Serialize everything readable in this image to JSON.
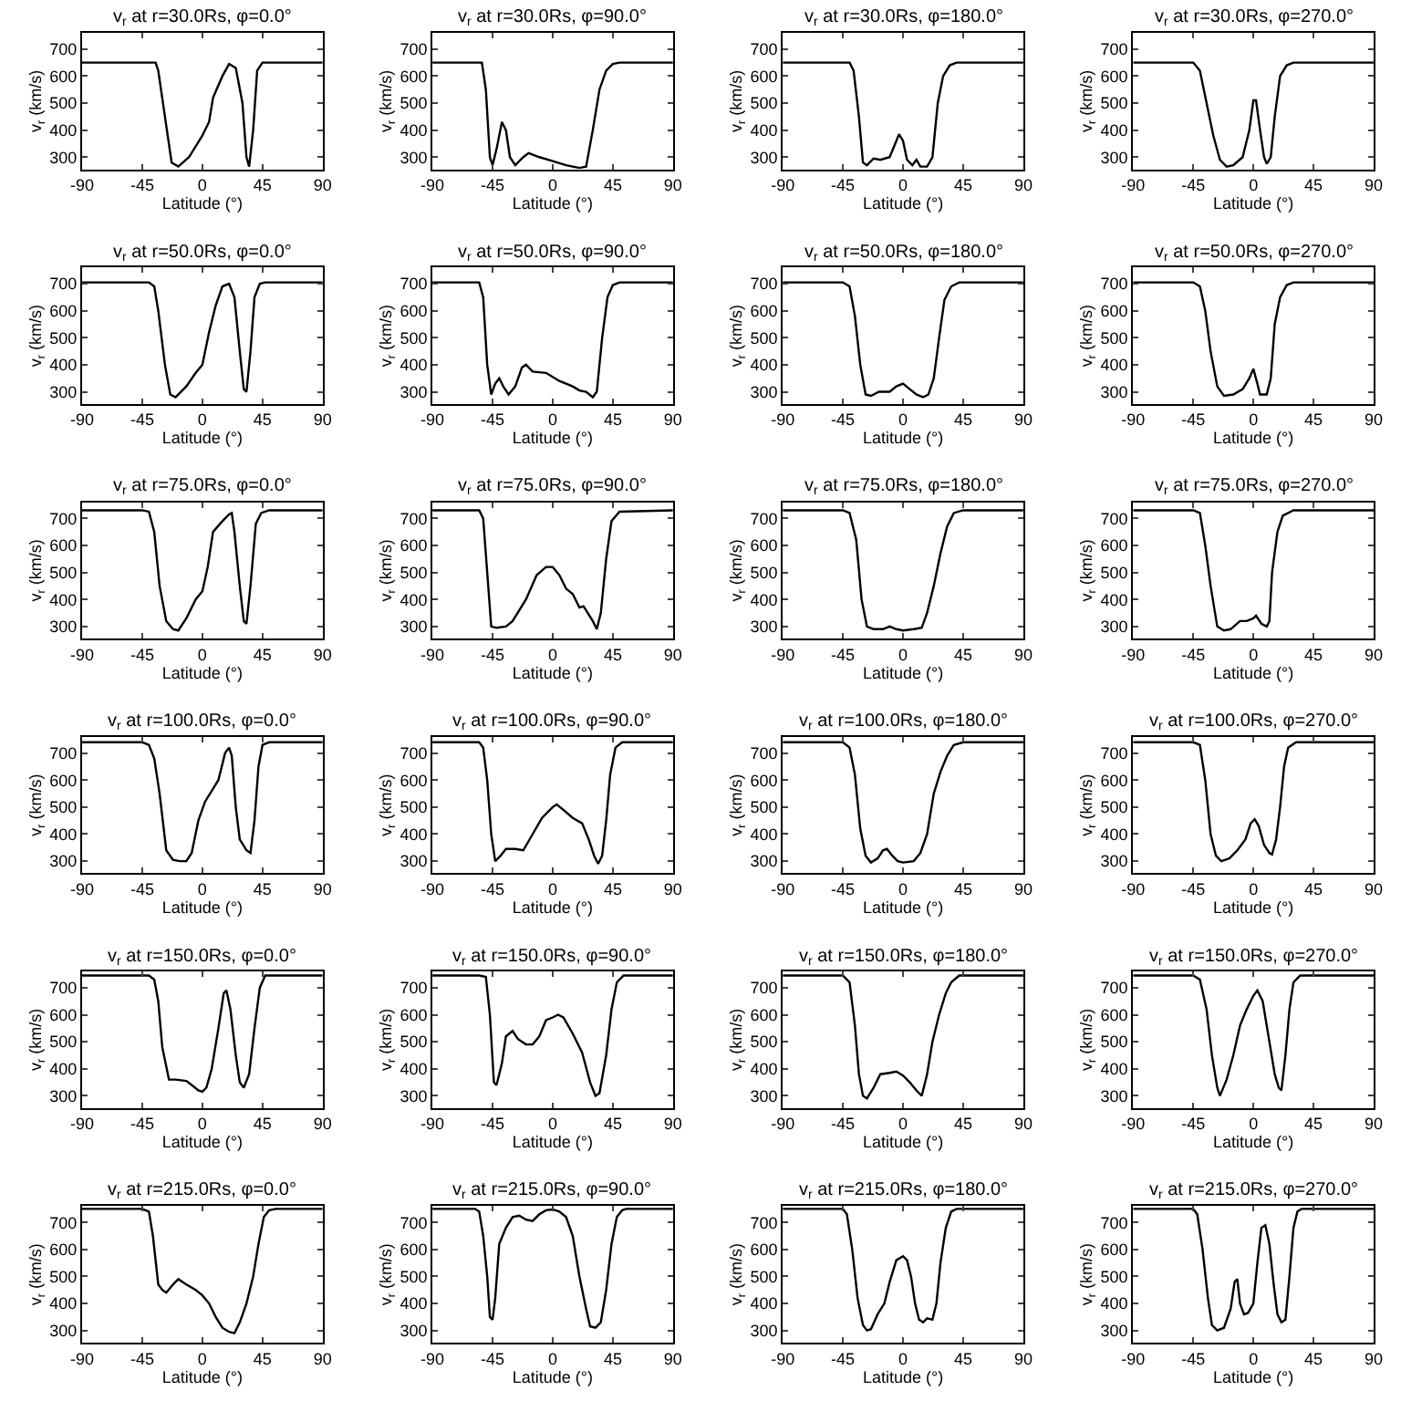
{
  "chart_data": [
    {
      "type": "line",
      "title": "v$_{r}$ at r=30.0Rs, φ=0.0°",
      "xlabel": "Latitude (°)",
      "ylabel": "v$_{r}$ (km/s)",
      "color": "#000000",
      "xlim": [
        -90,
        90
      ],
      "xticks": [
        -90,
        -45,
        0,
        45,
        90
      ],
      "ylim": [
        255,
        760
      ],
      "yticks": [
        300,
        400,
        500,
        600,
        700
      ],
      "x": [
        -90,
        -35,
        -33,
        -28,
        -23,
        -18,
        -10,
        0,
        5,
        8,
        15,
        20,
        25,
        30,
        33,
        35,
        38,
        41,
        45,
        90
      ],
      "values": [
        650,
        650,
        620,
        450,
        280,
        265,
        300,
        380,
        430,
        520,
        600,
        645,
        630,
        500,
        300,
        265,
        400,
        620,
        650,
        650
      ]
    },
    {
      "type": "line",
      "title": "v$_{r}$ at r=30.0Rs, φ=90.0°",
      "xlabel": "Latitude (°)",
      "ylabel": "v$_{r}$ (km/s)",
      "color": "#000000",
      "xlim": [
        -90,
        90
      ],
      "xticks": [
        -90,
        -45,
        0,
        45,
        90
      ],
      "ylim": [
        255,
        760
      ],
      "yticks": [
        300,
        400,
        500,
        600,
        700
      ],
      "x": [
        -90,
        -53,
        -50,
        -47,
        -45,
        -42,
        -38,
        -35,
        -32,
        -28,
        -22,
        -18,
        -10,
        0,
        10,
        20,
        25,
        30,
        35,
        40,
        45,
        50,
        90
      ],
      "values": [
        650,
        650,
        550,
        300,
        270,
        330,
        430,
        400,
        300,
        270,
        300,
        315,
        300,
        285,
        270,
        260,
        265,
        400,
        550,
        620,
        645,
        650,
        650
      ]
    },
    {
      "type": "line",
      "title": "v$_{r}$ at r=30.0Rs, φ=180.0°",
      "xlabel": "Latitude (°)",
      "ylabel": "v$_{r}$ (km/s)",
      "color": "#000000",
      "xlim": [
        -90,
        90
      ],
      "xticks": [
        -90,
        -45,
        0,
        45,
        90
      ],
      "ylim": [
        255,
        760
      ],
      "yticks": [
        300,
        400,
        500,
        600,
        700
      ],
      "x": [
        -90,
        -40,
        -37,
        -33,
        -30,
        -27,
        -22,
        -17,
        -10,
        -5,
        -3,
        0,
        3,
        7,
        10,
        13,
        18,
        22,
        26,
        30,
        35,
        40,
        90
      ],
      "values": [
        650,
        650,
        620,
        450,
        280,
        270,
        295,
        290,
        300,
        360,
        385,
        360,
        290,
        270,
        290,
        265,
        265,
        300,
        500,
        600,
        640,
        650,
        650
      ]
    },
    {
      "type": "line",
      "title": "v$_{r}$ at r=30.0Rs, φ=270.0°",
      "xlabel": "Latitude (°)",
      "ylabel": "v$_{r}$ (km/s)",
      "color": "#000000",
      "xlim": [
        -90,
        90
      ],
      "xticks": [
        -90,
        -45,
        0,
        45,
        90
      ],
      "ylim": [
        255,
        760
      ],
      "yticks": [
        300,
        400,
        500,
        600,
        700
      ],
      "x": [
        -90,
        -45,
        -40,
        -35,
        -30,
        -25,
        -20,
        -15,
        -8,
        -3,
        0,
        2,
        5,
        8,
        10,
        13,
        16,
        20,
        25,
        30,
        90
      ],
      "values": [
        650,
        650,
        620,
        500,
        380,
        290,
        265,
        270,
        300,
        400,
        510,
        510,
        400,
        300,
        275,
        300,
        450,
        600,
        640,
        650,
        650
      ]
    },
    {
      "type": "line",
      "title": "v$_{r}$ at r=50.0Rs, φ=0.0°",
      "xlabel": "Latitude (°)",
      "ylabel": "v$_{r}$ (km/s)",
      "color": "#000000",
      "xlim": [
        -90,
        90
      ],
      "xticks": [
        -90,
        -45,
        0,
        45,
        90
      ],
      "ylim": [
        255,
        760
      ],
      "yticks": [
        300,
        400,
        500,
        600,
        700
      ],
      "x": [
        -90,
        -40,
        -36,
        -33,
        -28,
        -24,
        -20,
        -12,
        -5,
        0,
        5,
        10,
        15,
        20,
        24,
        28,
        31,
        33,
        36,
        39,
        43,
        47,
        90
      ],
      "values": [
        705,
        705,
        690,
        600,
        400,
        290,
        280,
        320,
        370,
        400,
        520,
        620,
        690,
        700,
        650,
        450,
        310,
        300,
        450,
        650,
        700,
        705,
        705
      ]
    },
    {
      "type": "line",
      "title": "v$_{r}$ at r=50.0Rs, φ=90.0°",
      "xlabel": "Latitude (°)",
      "ylabel": "v$_{r}$ (km/s)",
      "color": "#000000",
      "xlim": [
        -90,
        90
      ],
      "xticks": [
        -90,
        -45,
        0,
        45,
        90
      ],
      "ylim": [
        255,
        760
      ],
      "yticks": [
        300,
        400,
        500,
        600,
        700
      ],
      "x": [
        -90,
        -55,
        -52,
        -49,
        -46,
        -43,
        -40,
        -37,
        -33,
        -28,
        -23,
        -20,
        -15,
        -5,
        5,
        15,
        20,
        25,
        30,
        33,
        37,
        41,
        45,
        50,
        90
      ],
      "values": [
        705,
        705,
        650,
        400,
        290,
        330,
        350,
        320,
        290,
        320,
        390,
        400,
        375,
        370,
        340,
        320,
        305,
        300,
        280,
        300,
        500,
        650,
        695,
        705,
        705
      ]
    },
    {
      "type": "line",
      "title": "v$_{r}$ at r=50.0Rs, φ=180.0°",
      "xlabel": "Latitude (°)",
      "ylabel": "v$_{r}$ (km/s)",
      "color": "#000000",
      "xlim": [
        -90,
        90
      ],
      "xticks": [
        -90,
        -45,
        0,
        45,
        90
      ],
      "ylim": [
        255,
        760
      ],
      "yticks": [
        300,
        400,
        500,
        600,
        700
      ],
      "x": [
        -90,
        -45,
        -40,
        -36,
        -32,
        -28,
        -24,
        -18,
        -10,
        -5,
        0,
        5,
        10,
        15,
        19,
        23,
        27,
        31,
        36,
        42,
        90
      ],
      "values": [
        705,
        705,
        690,
        580,
        400,
        290,
        285,
        300,
        300,
        320,
        330,
        310,
        290,
        280,
        290,
        350,
        500,
        640,
        690,
        705,
        705
      ]
    },
    {
      "type": "line",
      "title": "v$_{r}$ at r=50.0Rs, φ=270.0°",
      "xlabel": "Latitude (°)",
      "ylabel": "v$_{r}$ (km/s)",
      "color": "#000000",
      "xlim": [
        -90,
        90
      ],
      "xticks": [
        -90,
        -45,
        0,
        45,
        90
      ],
      "ylim": [
        255,
        760
      ],
      "yticks": [
        300,
        400,
        500,
        600,
        700
      ],
      "x": [
        -90,
        -45,
        -40,
        -36,
        -32,
        -27,
        -22,
        -15,
        -8,
        -3,
        0,
        3,
        5,
        10,
        13,
        16,
        20,
        25,
        30,
        90
      ],
      "values": [
        705,
        705,
        690,
        600,
        450,
        320,
        285,
        290,
        310,
        350,
        385,
        330,
        290,
        290,
        350,
        550,
        650,
        695,
        705,
        705
      ]
    },
    {
      "type": "line",
      "title": "v$_{r}$ at r=75.0Rs, φ=0.0°",
      "xlabel": "Latitude (°)",
      "ylabel": "v$_{r}$ (km/s)",
      "color": "#000000",
      "xlim": [
        -90,
        90
      ],
      "xticks": [
        -90,
        -45,
        0,
        45,
        90
      ],
      "ylim": [
        255,
        760
      ],
      "yticks": [
        300,
        400,
        500,
        600,
        700
      ],
      "x": [
        -90,
        -45,
        -40,
        -36,
        -32,
        -27,
        -22,
        -18,
        -12,
        -5,
        0,
        4,
        8,
        15,
        20,
        22,
        24,
        28,
        31,
        33,
        36,
        40,
        44,
        50,
        90
      ],
      "values": [
        730,
        730,
        725,
        650,
        450,
        320,
        290,
        285,
        330,
        400,
        430,
        520,
        650,
        690,
        715,
        720,
        650,
        450,
        320,
        310,
        450,
        680,
        720,
        730,
        730
      ]
    },
    {
      "type": "line",
      "title": "v$_{r}$ at r=75.0Rs, φ=90.0°",
      "xlabel": "Latitude (°)",
      "ylabel": "v$_{r}$ (km/s)",
      "color": "#000000",
      "xlim": [
        -90,
        90
      ],
      "xticks": [
        -90,
        -45,
        0,
        45,
        90
      ],
      "ylim": [
        255,
        760
      ],
      "yticks": [
        300,
        400,
        500,
        600,
        700
      ],
      "x": [
        -90,
        -55,
        -52,
        -49,
        -46,
        -42,
        -35,
        -30,
        -20,
        -12,
        -5,
        0,
        5,
        10,
        15,
        20,
        23,
        25,
        30,
        33,
        36,
        40,
        44,
        50,
        90
      ],
      "values": [
        730,
        730,
        700,
        500,
        300,
        295,
        300,
        320,
        400,
        490,
        520,
        520,
        490,
        440,
        420,
        370,
        375,
        360,
        320,
        290,
        350,
        550,
        690,
        725,
        730
      ]
    },
    {
      "type": "line",
      "title": "v$_{r}$ at r=75.0Rs, φ=180.0°",
      "xlabel": "Latitude (°)",
      "ylabel": "v$_{r}$ (km/s)",
      "color": "#000000",
      "xlim": [
        -90,
        90
      ],
      "xticks": [
        -90,
        -45,
        0,
        45,
        90
      ],
      "ylim": [
        255,
        760
      ],
      "yticks": [
        300,
        400,
        500,
        600,
        700
      ],
      "x": [
        -90,
        -45,
        -40,
        -35,
        -31,
        -27,
        -22,
        -15,
        -10,
        -5,
        0,
        8,
        14,
        18,
        23,
        28,
        33,
        38,
        45,
        90
      ],
      "values": [
        730,
        730,
        720,
        620,
        400,
        300,
        290,
        290,
        300,
        290,
        285,
        290,
        295,
        350,
        450,
        570,
        670,
        720,
        730,
        730
      ]
    },
    {
      "type": "line",
      "title": "v$_{r}$ at r=75.0Rs, φ=270.0°",
      "xlabel": "Latitude (°)",
      "ylabel": "v$_{r}$ (km/s)",
      "color": "#000000",
      "xlim": [
        -90,
        90
      ],
      "xticks": [
        -90,
        -45,
        0,
        45,
        90
      ],
      "ylim": [
        255,
        760
      ],
      "yticks": [
        300,
        400,
        500,
        600,
        700
      ],
      "x": [
        -90,
        -45,
        -40,
        -36,
        -32,
        -27,
        -22,
        -17,
        -10,
        -5,
        0,
        2,
        6,
        10,
        12,
        14,
        18,
        22,
        30,
        90
      ],
      "values": [
        730,
        730,
        720,
        600,
        450,
        300,
        285,
        290,
        320,
        320,
        330,
        340,
        310,
        300,
        320,
        500,
        650,
        710,
        730,
        730
      ]
    },
    {
      "type": "line",
      "title": "v$_{r}$ at r=100.0Rs, φ=0.0°",
      "xlabel": "Latitude (°)",
      "ylabel": "v$_{r}$ (km/s)",
      "color": "#000000",
      "xlim": [
        -90,
        90
      ],
      "xticks": [
        -90,
        -45,
        0,
        45,
        90
      ],
      "ylim": [
        255,
        760
      ],
      "yticks": [
        300,
        400,
        500,
        600,
        700
      ],
      "x": [
        -90,
        -45,
        -40,
        -36,
        -32,
        -27,
        -22,
        -17,
        -12,
        -8,
        -3,
        2,
        7,
        12,
        17,
        20,
        22,
        25,
        28,
        33,
        36,
        39,
        42,
        45,
        50,
        90
      ],
      "values": [
        740,
        740,
        730,
        680,
        550,
        340,
        305,
        300,
        300,
        330,
        450,
        520,
        560,
        600,
        700,
        720,
        690,
        500,
        380,
        340,
        330,
        450,
        650,
        730,
        740,
        740
      ]
    },
    {
      "type": "line",
      "title": "v$_{r}$ at r=100.0Rs, φ=90.0°",
      "xlabel": "Latitude (°)",
      "ylabel": "v$_{r}$ (km/s)",
      "color": "#000000",
      "xlim": [
        -90,
        90
      ],
      "xticks": [
        -90,
        -45,
        0,
        45,
        90
      ],
      "ylim": [
        255,
        760
      ],
      "yticks": [
        300,
        400,
        500,
        600,
        700
      ],
      "x": [
        -90,
        -55,
        -52,
        -49,
        -46,
        -43,
        -39,
        -35,
        -28,
        -22,
        -15,
        -8,
        0,
        3,
        8,
        15,
        22,
        27,
        31,
        34,
        37,
        40,
        43,
        47,
        52,
        90
      ],
      "values": [
        740,
        740,
        720,
        600,
        400,
        300,
        320,
        345,
        345,
        340,
        400,
        460,
        500,
        510,
        490,
        460,
        440,
        380,
        320,
        290,
        320,
        450,
        620,
        720,
        740,
        740
      ]
    },
    {
      "type": "line",
      "title": "v$_{r}$ at r=100.0Rs, φ=180.0°",
      "xlabel": "Latitude (°)",
      "ylabel": "v$_{r}$ (km/s)",
      "color": "#000000",
      "xlim": [
        -90,
        90
      ],
      "xticks": [
        -90,
        -45,
        0,
        45,
        90
      ],
      "ylim": [
        255,
        760
      ],
      "yticks": [
        300,
        400,
        500,
        600,
        700
      ],
      "x": [
        -90,
        -45,
        -40,
        -36,
        -32,
        -28,
        -24,
        -19,
        -15,
        -12,
        -8,
        -4,
        0,
        8,
        13,
        18,
        23,
        28,
        33,
        38,
        45,
        90
      ],
      "values": [
        740,
        740,
        720,
        620,
        420,
        320,
        295,
        310,
        340,
        345,
        320,
        300,
        295,
        300,
        330,
        400,
        550,
        630,
        690,
        730,
        740,
        740
      ]
    },
    {
      "type": "line",
      "title": "v$_{r}$ at r=100.0Rs, φ=270.0°",
      "xlabel": "Latitude (°)",
      "ylabel": "v$_{r}$ (km/s)",
      "color": "#000000",
      "xlim": [
        -90,
        90
      ],
      "xticks": [
        -90,
        -45,
        0,
        45,
        90
      ],
      "ylim": [
        255,
        760
      ],
      "yticks": [
        300,
        400,
        500,
        600,
        700
      ],
      "x": [
        -90,
        -45,
        -40,
        -36,
        -32,
        -28,
        -24,
        -18,
        -12,
        -6,
        -2,
        1,
        4,
        8,
        12,
        14,
        17,
        20,
        23,
        26,
        32,
        90
      ],
      "values": [
        740,
        740,
        730,
        600,
        400,
        320,
        300,
        310,
        340,
        380,
        440,
        455,
        430,
        360,
        330,
        325,
        380,
        500,
        650,
        720,
        740,
        740
      ]
    },
    {
      "type": "line",
      "title": "v$_{r}$ at r=150.0Rs, φ=0.0°",
      "xlabel": "Latitude (°)",
      "ylabel": "v$_{r}$ (km/s)",
      "color": "#000000",
      "xlim": [
        -90,
        90
      ],
      "xticks": [
        -90,
        -45,
        0,
        45,
        90
      ],
      "ylim": [
        255,
        760
      ],
      "yticks": [
        300,
        400,
        500,
        600,
        700
      ],
      "x": [
        -90,
        -40,
        -36,
        -33,
        -30,
        -25,
        -20,
        -12,
        -8,
        -3,
        0,
        3,
        7,
        12,
        16,
        18,
        21,
        25,
        28,
        31,
        35,
        39,
        43,
        47,
        90
      ],
      "values": [
        745,
        745,
        730,
        650,
        480,
        360,
        360,
        355,
        340,
        320,
        315,
        330,
        400,
        550,
        680,
        690,
        620,
        450,
        350,
        330,
        380,
        550,
        700,
        745,
        745
      ]
    },
    {
      "type": "line",
      "title": "v$_{r}$ at r=150.0Rs, φ=90.0°",
      "xlabel": "Latitude (°)",
      "ylabel": "v$_{r}$ (km/s)",
      "color": "#000000",
      "xlim": [
        -90,
        90
      ],
      "xticks": [
        -90,
        -45,
        0,
        45,
        90
      ],
      "ylim": [
        255,
        760
      ],
      "yticks": [
        300,
        400,
        500,
        600,
        700
      ],
      "x": [
        -90,
        -55,
        -50,
        -47,
        -44,
        -42,
        -38,
        -35,
        -30,
        -26,
        -20,
        -15,
        -10,
        -5,
        0,
        4,
        8,
        15,
        22,
        28,
        32,
        35,
        40,
        44,
        48,
        53,
        90
      ],
      "values": [
        745,
        745,
        740,
        600,
        350,
        340,
        420,
        520,
        540,
        510,
        490,
        490,
        520,
        580,
        590,
        600,
        590,
        530,
        460,
        350,
        300,
        310,
        450,
        620,
        720,
        745,
        745
      ]
    },
    {
      "type": "line",
      "title": "v$_{r}$ at r=150.0Rs, φ=180.0°",
      "xlabel": "Latitude (°)",
      "ylabel": "v$_{r}$ (km/s)",
      "color": "#000000",
      "xlim": [
        -90,
        90
      ],
      "xticks": [
        -90,
        -45,
        0,
        45,
        90
      ],
      "ylim": [
        255,
        760
      ],
      "yticks": [
        300,
        400,
        500,
        600,
        700
      ],
      "x": [
        -90,
        -45,
        -40,
        -36,
        -33,
        -30,
        -27,
        -22,
        -17,
        -10,
        -5,
        0,
        5,
        10,
        14,
        18,
        22,
        27,
        32,
        36,
        42,
        90
      ],
      "values": [
        745,
        745,
        720,
        560,
        380,
        300,
        290,
        330,
        380,
        385,
        390,
        375,
        350,
        320,
        300,
        380,
        500,
        600,
        680,
        720,
        745,
        745
      ]
    },
    {
      "type": "line",
      "title": "v$_{r}$ at r=150.0Rs, φ=270.0°",
      "xlabel": "Latitude (°)",
      "ylabel": "v$_{r}$ (km/s)",
      "color": "#000000",
      "xlim": [
        -90,
        90
      ],
      "xticks": [
        -90,
        -45,
        0,
        45,
        90
      ],
      "ylim": [
        255,
        760
      ],
      "yticks": [
        300,
        400,
        500,
        600,
        700
      ],
      "x": [
        -90,
        -45,
        -40,
        -35,
        -31,
        -27,
        -25,
        -20,
        -15,
        -10,
        -5,
        0,
        3,
        7,
        12,
        16,
        19,
        21,
        24,
        27,
        30,
        35,
        90
      ],
      "values": [
        745,
        745,
        730,
        620,
        450,
        330,
        300,
        360,
        450,
        560,
        620,
        670,
        690,
        650,
        500,
        380,
        330,
        320,
        450,
        620,
        720,
        745,
        745
      ]
    },
    {
      "type": "line",
      "title": "v$_{r}$ at r=215.0Rs, φ=0.0°",
      "xlabel": "Latitude (°)",
      "ylabel": "v$_{r}$ (km/s)",
      "color": "#000000",
      "xlim": [
        -90,
        90
      ],
      "xticks": [
        -90,
        -45,
        0,
        45,
        90
      ],
      "ylim": [
        255,
        760
      ],
      "yticks": [
        300,
        400,
        500,
        600,
        700
      ],
      "x": [
        -90,
        -45,
        -40,
        -37,
        -33,
        -30,
        -27,
        -22,
        -18,
        -12,
        -5,
        0,
        5,
        10,
        15,
        20,
        24,
        28,
        33,
        38,
        42,
        46,
        50,
        55,
        90
      ],
      "values": [
        750,
        750,
        740,
        650,
        470,
        450,
        440,
        470,
        490,
        470,
        450,
        430,
        400,
        350,
        310,
        295,
        290,
        330,
        400,
        500,
        620,
        720,
        745,
        750,
        750
      ]
    },
    {
      "type": "line",
      "title": "v$_{r}$ at r=215.0Rs, φ=90.0°",
      "xlabel": "Latitude (°)",
      "ylabel": "v$_{r}$ (km/s)",
      "color": "#000000",
      "xlim": [
        -90,
        90
      ],
      "xticks": [
        -90,
        -45,
        0,
        45,
        90
      ],
      "ylim": [
        255,
        760
      ],
      "yticks": [
        300,
        400,
        500,
        600,
        700
      ],
      "x": [
        -90,
        -58,
        -55,
        -52,
        -49,
        -47,
        -45,
        -43,
        -40,
        -35,
        -30,
        -25,
        -20,
        -15,
        -10,
        -5,
        0,
        5,
        10,
        15,
        20,
        25,
        28,
        32,
        36,
        40,
        44,
        48,
        52,
        55,
        90
      ],
      "values": [
        750,
        750,
        740,
        650,
        500,
        350,
        340,
        420,
        620,
        680,
        720,
        725,
        710,
        705,
        730,
        745,
        748,
        740,
        720,
        650,
        500,
        380,
        315,
        310,
        330,
        450,
        620,
        720,
        745,
        750,
        750
      ]
    },
    {
      "type": "line",
      "title": "v$_{r}$ at r=215.0Rs, φ=180.0°",
      "xlabel": "Latitude (°)",
      "ylabel": "v$_{r}$ (km/s)",
      "color": "#000000",
      "xlim": [
        -90,
        90
      ],
      "xticks": [
        -90,
        -45,
        0,
        45,
        90
      ],
      "ylim": [
        255,
        760
      ],
      "yticks": [
        300,
        400,
        500,
        600,
        700
      ],
      "x": [
        -90,
        -45,
        -42,
        -38,
        -34,
        -30,
        -27,
        -24,
        -19,
        -14,
        -10,
        -5,
        0,
        3,
        6,
        9,
        12,
        15,
        18,
        22,
        25,
        28,
        32,
        36,
        40,
        90
      ],
      "values": [
        750,
        750,
        730,
        600,
        420,
        320,
        300,
        305,
        360,
        400,
        480,
        560,
        575,
        560,
        500,
        400,
        340,
        330,
        345,
        340,
        400,
        550,
        680,
        740,
        750,
        750
      ]
    },
    {
      "type": "line",
      "title": "v$_{r}$ at r=215.0Rs, φ=270.0°",
      "xlabel": "Latitude (°)",
      "ylabel": "v$_{r}$ (km/s)",
      "color": "#000000",
      "xlim": [
        -90,
        90
      ],
      "xticks": [
        -90,
        -45,
        0,
        45,
        90
      ],
      "ylim": [
        255,
        760
      ],
      "yticks": [
        300,
        400,
        500,
        600,
        700
      ],
      "x": [
        -90,
        -45,
        -42,
        -38,
        -34,
        -31,
        -27,
        -22,
        -17,
        -14,
        -12,
        -10,
        -7,
        -4,
        0,
        3,
        6,
        9,
        12,
        15,
        18,
        21,
        24,
        27,
        30,
        33,
        36,
        90
      ],
      "values": [
        750,
        750,
        730,
        600,
        420,
        320,
        300,
        310,
        380,
        480,
        490,
        400,
        360,
        365,
        400,
        550,
        680,
        690,
        620,
        480,
        360,
        330,
        340,
        500,
        680,
        740,
        750,
        750
      ]
    }
  ]
}
